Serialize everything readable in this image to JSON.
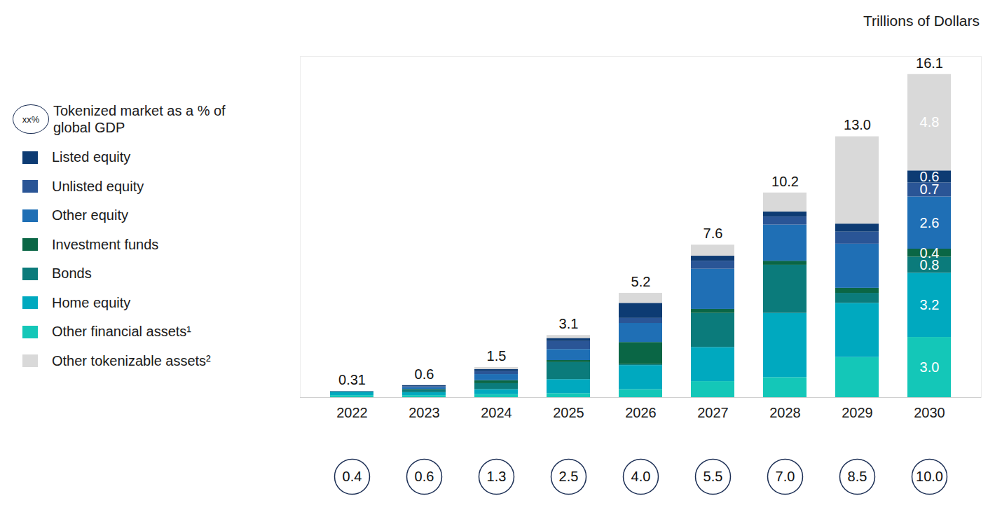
{
  "chart_data": {
    "type": "bar",
    "stacked": true,
    "ylabel": "Trillions of Dollars",
    "categories": [
      "2022",
      "2023",
      "2024",
      "2025",
      "2026",
      "2027",
      "2028",
      "2029",
      "2030"
    ],
    "ylim": [
      0,
      17
    ],
    "yticks": [],
    "grid": false,
    "tick_labels": "x",
    "legend": "left",
    "data_labels": true,
    "series": [
      {
        "name": "Listed equity",
        "color": "#0d3b73",
        "values": [
          0,
          0.05,
          0.1,
          0.15,
          0.75,
          0.25,
          0.25,
          0.4,
          0.6
        ],
        "value_labels": [
          null,
          null,
          null,
          null,
          null,
          null,
          null,
          null,
          "0.6"
        ]
      },
      {
        "name": "Unlisted equity",
        "color": "#2a5596",
        "values": [
          0,
          0.05,
          0.15,
          0.4,
          0.25,
          0.4,
          0.4,
          0.6,
          0.7
        ],
        "value_labels": [
          null,
          null,
          null,
          null,
          null,
          null,
          null,
          null,
          "0.7"
        ]
      },
      {
        "name": "Other equity",
        "color": "#1f6fb5",
        "values": [
          0.02,
          0.1,
          0.3,
          0.55,
          0.95,
          2.0,
          1.8,
          2.2,
          2.6
        ],
        "value_labels": [
          null,
          null,
          null,
          null,
          null,
          null,
          null,
          null,
          "2.6"
        ]
      },
      {
        "name": "Investment funds",
        "color": "#0a6645",
        "values": [
          0,
          0.05,
          0.15,
          0.1,
          1.1,
          0.2,
          0.2,
          0.25,
          0.4
        ],
        "value_labels": [
          null,
          null,
          null,
          null,
          null,
          null,
          null,
          null,
          "0.4"
        ]
      },
      {
        "name": "Bonds",
        "color": "#0b7b7b",
        "values": [
          0.04,
          0.1,
          0.3,
          0.85,
          0.05,
          1.7,
          2.4,
          0.5,
          0.8
        ],
        "value_labels": [
          null,
          null,
          null,
          null,
          null,
          null,
          null,
          null,
          "0.8"
        ]
      },
      {
        "name": "Home equity",
        "color": "#00a9bf",
        "values": [
          0.15,
          0.15,
          0.25,
          0.7,
          1.2,
          1.7,
          3.2,
          2.7,
          3.2
        ],
        "value_labels": [
          null,
          null,
          null,
          null,
          null,
          null,
          null,
          null,
          "3.2"
        ]
      },
      {
        "name": "Other financial assets¹",
        "color": "#14c7b8",
        "values": [
          0.1,
          0.1,
          0.15,
          0.2,
          0.4,
          0.8,
          1.0,
          2.0,
          3.0
        ],
        "value_labels": [
          null,
          null,
          null,
          null,
          null,
          null,
          null,
          null,
          "3.0"
        ]
      },
      {
        "name": "Other tokenizable assets²",
        "color": "#d9d9d9",
        "values": [
          0,
          0,
          0.1,
          0.15,
          0.5,
          0.55,
          0.95,
          4.35,
          4.8
        ],
        "value_labels": [
          null,
          null,
          null,
          null,
          null,
          null,
          null,
          null,
          "4.8"
        ]
      }
    ],
    "totals": [
      0.31,
      0.6,
      1.5,
      3.1,
      5.2,
      7.6,
      10.2,
      13.0,
      16.1
    ],
    "total_labels": [
      "0.31",
      "0.6",
      "1.5",
      "3.1",
      "5.2",
      "7.6",
      "10.2",
      "13.0",
      "16.1"
    ],
    "gdp_share_legend": "Tokenized market as a % of global GDP",
    "gdp_share_symbol": "xx%",
    "gdp_share": [
      0.4,
      0.6,
      1.3,
      2.5,
      4.0,
      5.5,
      7.0,
      8.5,
      10.0
    ],
    "gdp_share_labels": [
      "0.4",
      "0.6",
      "1.3",
      "2.5",
      "4.0",
      "5.5",
      "7.0",
      "8.5",
      "10.0"
    ]
  }
}
